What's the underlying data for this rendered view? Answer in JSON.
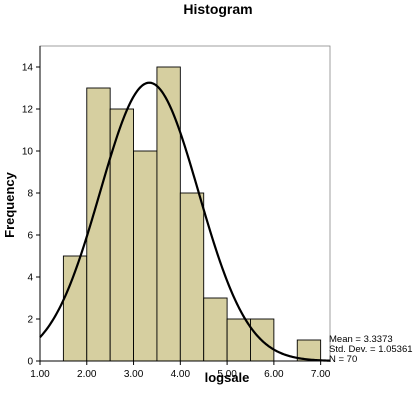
{
  "chart_data": {
    "type": "histogram",
    "title": "Histogram",
    "xlabel": "logsale",
    "ylabel": "Frequency",
    "xlim": [
      1.0,
      7.2
    ],
    "ylim": [
      0,
      15
    ],
    "x_ticks": [
      "1.00",
      "2.00",
      "3.00",
      "4.00",
      "5.00",
      "6.00",
      "7.00"
    ],
    "x_tick_values": [
      1,
      2,
      3,
      4,
      5,
      6,
      7
    ],
    "y_ticks": [
      "0",
      "2",
      "4",
      "6",
      "8",
      "10",
      "12",
      "14"
    ],
    "y_tick_values": [
      0,
      2,
      4,
      6,
      8,
      10,
      12,
      14
    ],
    "bins": [
      {
        "start": 1.5,
        "end": 2.0,
        "count": 5
      },
      {
        "start": 2.0,
        "end": 2.5,
        "count": 13
      },
      {
        "start": 2.5,
        "end": 3.0,
        "count": 12
      },
      {
        "start": 3.0,
        "end": 3.5,
        "count": 10
      },
      {
        "start": 3.5,
        "end": 4.0,
        "count": 14
      },
      {
        "start": 4.0,
        "end": 4.5,
        "count": 8
      },
      {
        "start": 4.5,
        "end": 5.0,
        "count": 3
      },
      {
        "start": 5.0,
        "end": 5.5,
        "count": 2
      },
      {
        "start": 5.5,
        "end": 6.0,
        "count": 2
      },
      {
        "start": 6.5,
        "end": 7.0,
        "count": 1
      }
    ],
    "normal_curve": {
      "mean": 3.3373,
      "std_dev": 1.05361,
      "n": 70,
      "bin_width": 0.5
    },
    "stats": {
      "mean_label": "Mean = 3.3373",
      "std_label": "Std. Dev. = 1.05361",
      "n_label": "N = 70"
    },
    "grid": false,
    "legend": "none",
    "colors": {
      "bar_fill": "#d6cfa0",
      "bar_stroke": "#000000",
      "curve": "#000000",
      "axis": "#000000",
      "background": "#ffffff"
    }
  }
}
